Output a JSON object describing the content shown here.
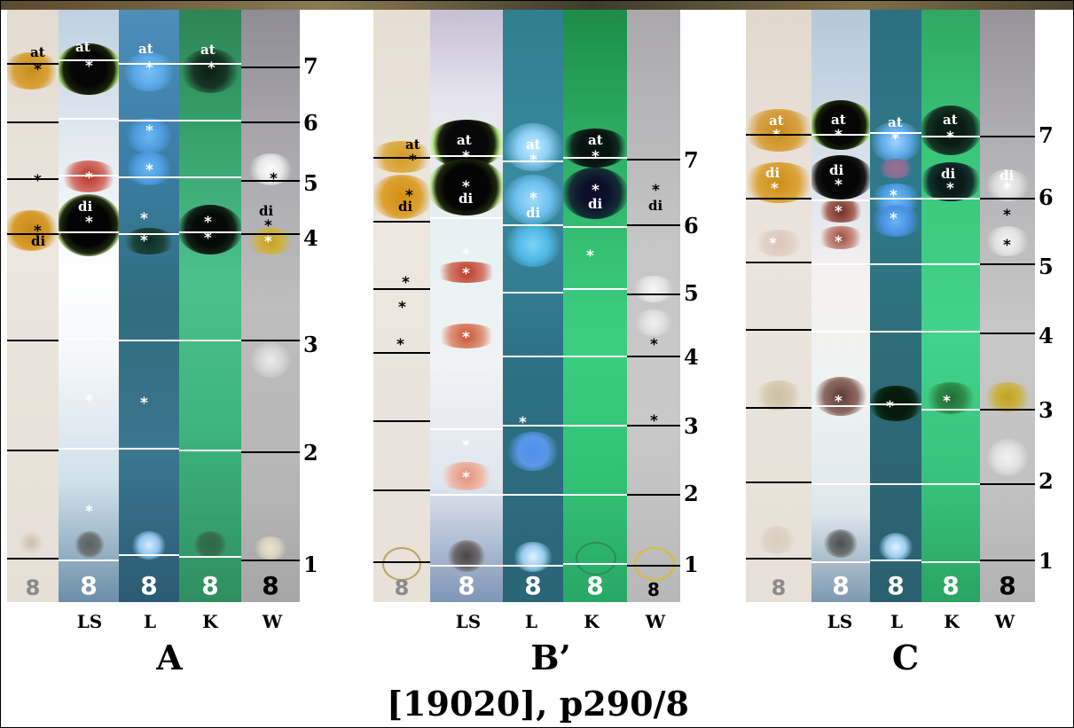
{
  "reference": "[19020], p290/8",
  "panels": [
    {
      "label": "A",
      "lanes": [
        "LS",
        "L",
        "K",
        "W"
      ],
      "strip_number": "8",
      "rf_markers": [
        "1",
        "2",
        "3",
        "4",
        "5",
        "6",
        "7"
      ],
      "spot_labels": {
        "at": "at",
        "di": "di",
        "mark": "*"
      }
    },
    {
      "label": "B’",
      "lanes": [
        "LS",
        "L",
        "K",
        "W"
      ],
      "strip_number": "8",
      "rf_markers": [
        "1",
        "2",
        "3",
        "4",
        "5",
        "6",
        "7"
      ],
      "spot_labels": {
        "at": "at",
        "di": "di",
        "mark": "*"
      }
    },
    {
      "label": "C",
      "lanes": [
        "LS",
        "L",
        "K",
        "W"
      ],
      "strip_number": "8",
      "rf_markers": [
        "1",
        "2",
        "3",
        "4",
        "5",
        "6",
        "7"
      ],
      "spot_labels": {
        "at": "at",
        "di": "di",
        "mark": "*"
      }
    }
  ],
  "colors": {
    "ref_strip": "#e9e3da",
    "LS": "#c9d6de",
    "L": "#2f6f80",
    "K": "#2fb77a",
    "W": "#b9b9b9",
    "at_spot": "#c98a18",
    "di_spot": "#c9900f",
    "rf_line": "#000000"
  }
}
